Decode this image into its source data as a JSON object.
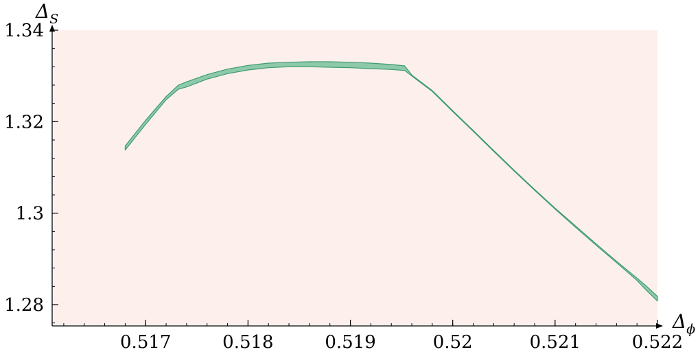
{
  "chart_data": {
    "type": "area",
    "title": "",
    "xlabel": "Δ",
    "xlabel_sub": "ϕ",
    "ylabel": "Δ",
    "ylabel_sub": "S",
    "xlim": [
      0.5161,
      0.522
    ],
    "ylim": [
      1.2755,
      1.34
    ],
    "x_ticks": [
      0.517,
      0.518,
      0.519,
      0.52,
      0.521,
      0.522
    ],
    "x_tick_labels": [
      "0.517",
      "0.518",
      "0.519",
      "0.52",
      "0.521",
      "0.522"
    ],
    "y_ticks": [
      1.28,
      1.3,
      1.32,
      1.34
    ],
    "y_tick_labels": [
      "1.28",
      "1.3",
      "1.32",
      "1.34"
    ],
    "x_minor_step": 0.0002,
    "y_minor_step": 0.004,
    "grid": false,
    "legend": "none",
    "colors": {
      "plot_background": "#fdf0ec",
      "band_fill": "#8dcaaa",
      "band_stroke": "#3f9a72"
    },
    "series": [
      {
        "upper": [
          [
            0.5168,
            1.3147
          ],
          [
            0.517,
            1.3203
          ],
          [
            0.5172,
            1.3255
          ],
          [
            0.51732,
            1.328
          ],
          [
            0.5174,
            1.3287
          ],
          [
            0.5176,
            1.3303
          ],
          [
            0.5178,
            1.3315
          ],
          [
            0.518,
            1.3323
          ],
          [
            0.5182,
            1.3328
          ],
          [
            0.5184,
            1.333
          ],
          [
            0.5186,
            1.3331
          ],
          [
            0.5188,
            1.3331
          ],
          [
            0.519,
            1.333
          ],
          [
            0.5192,
            1.3328
          ],
          [
            0.5194,
            1.3325
          ],
          [
            0.51953,
            1.3322
          ],
          [
            0.5196,
            1.3302
          ]
        ],
        "lower": [
          [
            0.5168,
            1.3138
          ],
          [
            0.517,
            1.3194
          ],
          [
            0.5172,
            1.3248
          ],
          [
            0.51732,
            1.3271
          ],
          [
            0.5174,
            1.3276
          ],
          [
            0.5176,
            1.3293
          ],
          [
            0.5178,
            1.3305
          ],
          [
            0.518,
            1.3313
          ],
          [
            0.5182,
            1.3318
          ],
          [
            0.5184,
            1.332
          ],
          [
            0.5186,
            1.332
          ],
          [
            0.5188,
            1.3319
          ],
          [
            0.519,
            1.3318
          ],
          [
            0.5192,
            1.3316
          ],
          [
            0.5194,
            1.3314
          ],
          [
            0.51953,
            1.3312
          ],
          [
            0.5196,
            1.33
          ]
        ]
      },
      {
        "upper": [
          [
            0.5196,
            1.3302
          ],
          [
            0.5198,
            1.3268
          ],
          [
            0.52,
            1.3224
          ],
          [
            0.5202,
            1.3181
          ],
          [
            0.5204,
            1.3137
          ],
          [
            0.5206,
            1.3094
          ],
          [
            0.5208,
            1.3052
          ],
          [
            0.521,
            1.3011
          ],
          [
            0.5212,
            1.2972
          ],
          [
            0.5214,
            1.2933
          ],
          [
            0.5216,
            1.2895
          ],
          [
            0.5218,
            1.2858
          ],
          [
            0.52188,
            1.2843
          ],
          [
            0.522,
            1.2818
          ]
        ],
        "lower": [
          [
            0.5196,
            1.33
          ],
          [
            0.5198,
            1.3266
          ],
          [
            0.52,
            1.3222
          ],
          [
            0.5202,
            1.3179
          ],
          [
            0.5204,
            1.3135
          ],
          [
            0.5206,
            1.3092
          ],
          [
            0.5208,
            1.305
          ],
          [
            0.521,
            1.3009
          ],
          [
            0.5212,
            1.2969
          ],
          [
            0.5214,
            1.293
          ],
          [
            0.5216,
            1.2892
          ],
          [
            0.5218,
            1.2853
          ],
          [
            0.52188,
            1.2834
          ],
          [
            0.522,
            1.2808
          ]
        ]
      }
    ]
  }
}
